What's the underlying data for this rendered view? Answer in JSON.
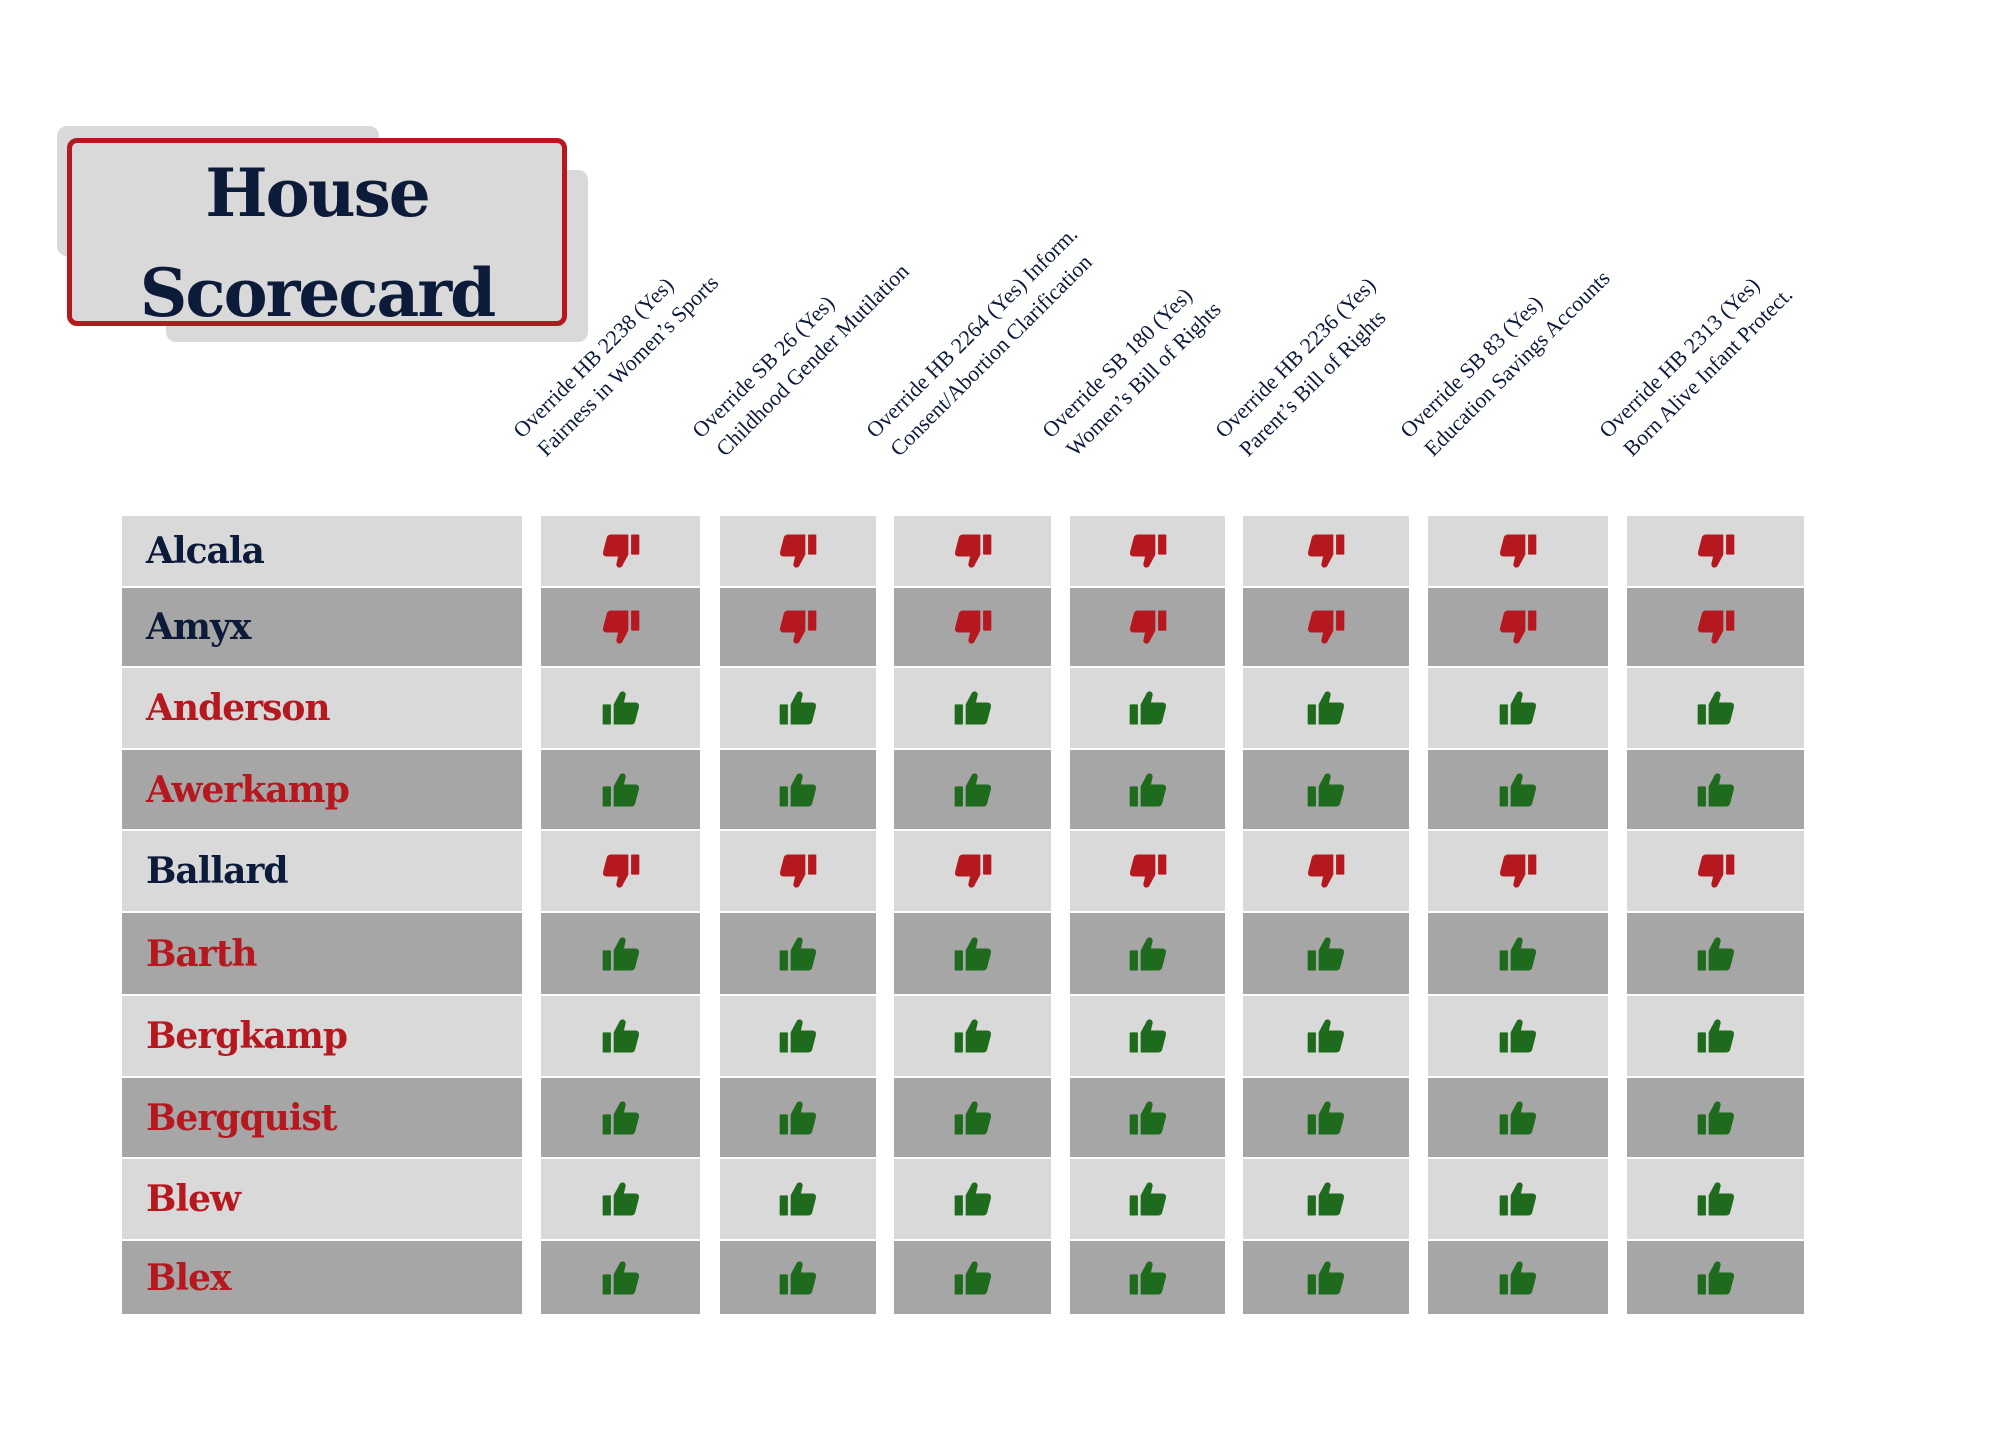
{
  "title": {
    "line1": "House",
    "line2": "Scorecard"
  },
  "colors": {
    "light_row": "#d9d9d9",
    "dark_row": "#a6a6a6",
    "navy": "#0d1b3a",
    "red": "#b5191f",
    "green": "#1e6b1e"
  },
  "columns": [
    {
      "line1": "Override HB 2238 (Yes)",
      "line2": "Fairness in Women’s Sports"
    },
    {
      "line1": "Override SB 26 (Yes)",
      "line2": "Childhood Gender Mutilation"
    },
    {
      "line1": "Override HB 2264 (Yes) Inform.",
      "line2": "Consent/Abortion Clarification"
    },
    {
      "line1": "Override SB 180 (Yes)",
      "line2": "Women’s Bill of Rights"
    },
    {
      "line1": "Override HB 2236 (Yes)",
      "line2": "Parent’s Bill of Rights"
    },
    {
      "line1": "Override SB 83 (Yes)",
      "line2": "Education Savings Accounts"
    },
    {
      "line1": "Override HB 2313 (Yes)",
      "line2": "Born Alive Infant Protect."
    }
  ],
  "rows": [
    {
      "name": "Alcala",
      "name_color": "navy",
      "vote": "thumbs-down"
    },
    {
      "name": "Amyx",
      "name_color": "navy",
      "vote": "thumbs-down"
    },
    {
      "name": "Anderson",
      "name_color": "red",
      "vote": "thumbs-up"
    },
    {
      "name": "Awerkamp",
      "name_color": "red",
      "vote": "thumbs-up"
    },
    {
      "name": "Ballard",
      "name_color": "navy",
      "vote": "thumbs-down"
    },
    {
      "name": "Barth",
      "name_color": "red",
      "vote": "thumbs-up"
    },
    {
      "name": "Bergkamp",
      "name_color": "red",
      "vote": "thumbs-up"
    },
    {
      "name": "Bergquist",
      "name_color": "red",
      "vote": "thumbs-up"
    },
    {
      "name": "Blew",
      "name_color": "red",
      "vote": "thumbs-up"
    },
    {
      "name": "Blex",
      "name_color": "red",
      "vote": "thumbs-up"
    }
  ]
}
